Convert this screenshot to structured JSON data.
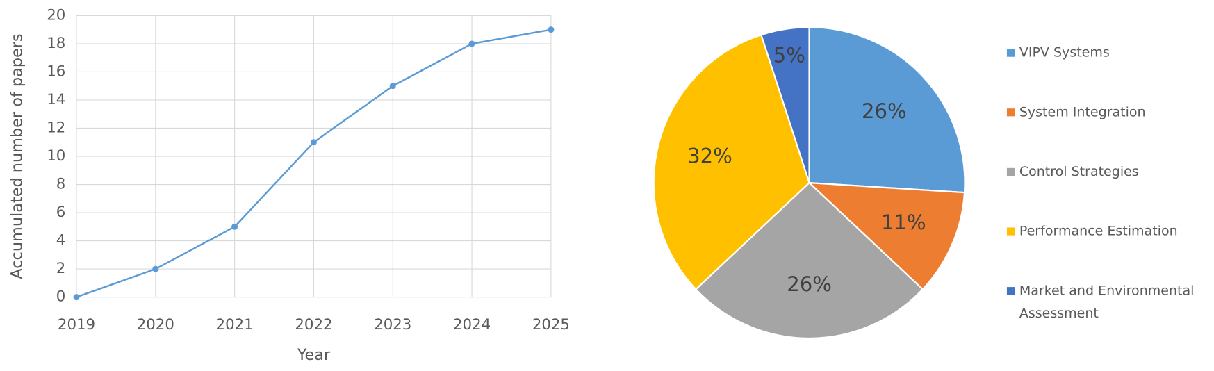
{
  "chart_data": [
    {
      "type": "line",
      "xlabel": "Year",
      "ylabel": "Accumulated number of papers",
      "x": [
        2019,
        2020,
        2021,
        2022,
        2023,
        2024,
        2025
      ],
      "series": [
        {
          "name": "Accumulated number of papers",
          "color": "#5b9bd5",
          "values": [
            0,
            2,
            5,
            11,
            15,
            18,
            19
          ]
        }
      ],
      "xlim": [
        2019,
        2025
      ],
      "xticks": [
        2019,
        2020,
        2021,
        2022,
        2023,
        2024,
        2025
      ],
      "ylim": [
        0,
        20
      ],
      "yticks": [
        0,
        2,
        4,
        6,
        8,
        10,
        12,
        14,
        16,
        18,
        20
      ],
      "grid": true
    },
    {
      "type": "pie",
      "categories": [
        "VIPV Systems",
        "System Integration",
        "Control Strategies",
        "Performance Estimation",
        "Market and Environmental Assessment"
      ],
      "values": [
        26,
        11,
        26,
        32,
        5
      ],
      "value_labels": [
        "26%",
        "11%",
        "26%",
        "32%",
        "5%"
      ],
      "colors": [
        "#5b9bd5",
        "#ed7d31",
        "#a5a5a5",
        "#ffc000",
        "#4472c4"
      ],
      "legend": "right"
    }
  ]
}
